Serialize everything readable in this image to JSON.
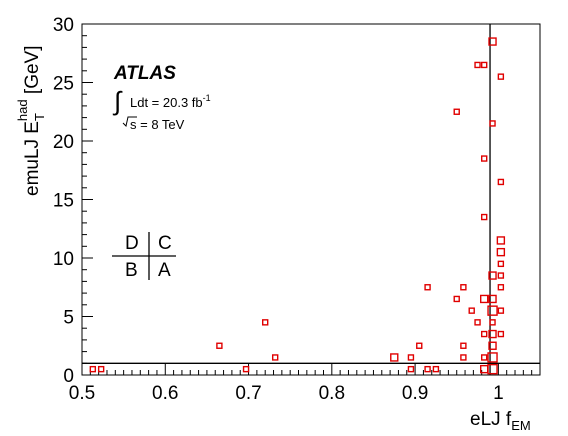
{
  "chart_data": {
    "type": "scatter",
    "title": "",
    "xlabel": {
      "base": "eLJ f",
      "sub": "EM"
    },
    "ylabel": {
      "base": "emuLJ E",
      "sub": "T",
      "sup": "had",
      "unit": " [GeV]"
    },
    "xlim": [
      0.5,
      1.05
    ],
    "ylim": [
      0,
      30
    ],
    "xticks": [
      0.5,
      0.6,
      0.7,
      0.8,
      0.9,
      1
    ],
    "yticks": [
      0,
      5,
      10,
      15,
      20,
      25,
      30
    ],
    "grid": false,
    "cut_lines": {
      "x": 0.99,
      "y": 1
    },
    "marker_color": "#e00000",
    "annotations": {
      "experiment": "ATLAS",
      "lumi": "Ldt = 20.3 fb",
      "lumi_sup": "-1",
      "energy": "s = 8 TeV"
    },
    "regions": {
      "top_left": "D",
      "top_right": "C",
      "bottom_left": "B",
      "bottom_right": "A"
    },
    "points": [
      {
        "x": 0.513,
        "y": 0.5,
        "w": 1
      },
      {
        "x": 0.523,
        "y": 0.5,
        "w": 1
      },
      {
        "x": 0.665,
        "y": 2.5,
        "w": 1
      },
      {
        "x": 0.697,
        "y": 0.5,
        "w": 1
      },
      {
        "x": 0.72,
        "y": 4.5,
        "w": 1
      },
      {
        "x": 0.732,
        "y": 1.5,
        "w": 1
      },
      {
        "x": 0.875,
        "y": 1.5,
        "w": 2
      },
      {
        "x": 0.895,
        "y": 1.5,
        "w": 1
      },
      {
        "x": 0.895,
        "y": 0.5,
        "w": 1
      },
      {
        "x": 0.905,
        "y": 2.5,
        "w": 1
      },
      {
        "x": 0.915,
        "y": 7.5,
        "w": 1
      },
      {
        "x": 0.915,
        "y": 0.5,
        "w": 1
      },
      {
        "x": 0.925,
        "y": 0.5,
        "w": 1
      },
      {
        "x": 0.95,
        "y": 22.5,
        "w": 1
      },
      {
        "x": 0.95,
        "y": 6.5,
        "w": 1
      },
      {
        "x": 0.958,
        "y": 7.5,
        "w": 1
      },
      {
        "x": 0.958,
        "y": 2.5,
        "w": 1
      },
      {
        "x": 0.958,
        "y": 1.5,
        "w": 1
      },
      {
        "x": 0.968,
        "y": 5.5,
        "w": 1
      },
      {
        "x": 0.975,
        "y": 26.5,
        "w": 1
      },
      {
        "x": 0.975,
        "y": 4.5,
        "w": 1
      },
      {
        "x": 0.983,
        "y": 26.5,
        "w": 1
      },
      {
        "x": 0.983,
        "y": 18.5,
        "w": 1
      },
      {
        "x": 0.983,
        "y": 13.5,
        "w": 1
      },
      {
        "x": 0.983,
        "y": 6.5,
        "w": 2
      },
      {
        "x": 0.983,
        "y": 3.5,
        "w": 1
      },
      {
        "x": 0.983,
        "y": 1.5,
        "w": 1
      },
      {
        "x": 0.983,
        "y": 0.5,
        "w": 2
      },
      {
        "x": 0.993,
        "y": 28.5,
        "w": 2
      },
      {
        "x": 0.993,
        "y": 21.5,
        "w": 1
      },
      {
        "x": 0.993,
        "y": 8.5,
        "w": 2
      },
      {
        "x": 0.993,
        "y": 6.5,
        "w": 2
      },
      {
        "x": 0.993,
        "y": 5.5,
        "w": 3
      },
      {
        "x": 0.993,
        "y": 4.5,
        "w": 1
      },
      {
        "x": 0.993,
        "y": 3.5,
        "w": 2
      },
      {
        "x": 0.993,
        "y": 2.5,
        "w": 2
      },
      {
        "x": 0.993,
        "y": 1.5,
        "w": 3
      },
      {
        "x": 0.993,
        "y": 0.5,
        "w": 3
      },
      {
        "x": 1.003,
        "y": 25.5,
        "w": 1
      },
      {
        "x": 1.003,
        "y": 16.5,
        "w": 1
      },
      {
        "x": 1.003,
        "y": 11.5,
        "w": 2
      },
      {
        "x": 1.003,
        "y": 10.5,
        "w": 2
      },
      {
        "x": 1.003,
        "y": 9.5,
        "w": 1
      },
      {
        "x": 1.003,
        "y": 8.5,
        "w": 1
      },
      {
        "x": 1.003,
        "y": 7.5,
        "w": 1
      },
      {
        "x": 1.003,
        "y": 5.5,
        "w": 1
      },
      {
        "x": 1.003,
        "y": 3.5,
        "w": 1
      }
    ]
  }
}
